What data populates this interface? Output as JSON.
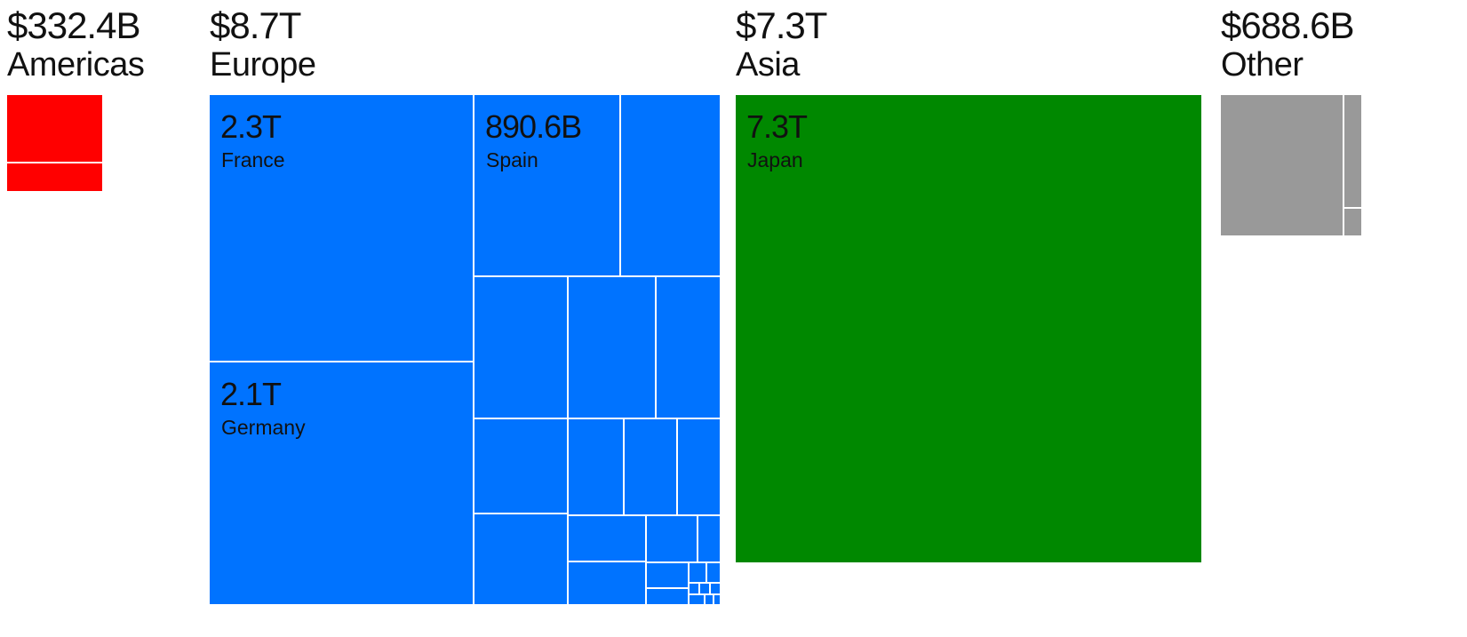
{
  "chart_data": {
    "type": "treemap",
    "title": "",
    "groups": [
      {
        "name": "Americas",
        "total_label": "$332.4B",
        "color": "#ff0000",
        "items": [
          {
            "value": 230
          },
          {
            "value": 102
          }
        ]
      },
      {
        "name": "Europe",
        "total_label": "$8.7T",
        "color": "#0073ff",
        "items": [
          {
            "name": "France",
            "value_label": "2.3T",
            "value": 2300
          },
          {
            "name": "Germany",
            "value_label": "2.1T",
            "value": 2100
          },
          {
            "name": "Spain",
            "value_label": "890.6B",
            "value": 890.6
          },
          {
            "value": 600
          },
          {
            "value": 450
          },
          {
            "value": 420
          },
          {
            "value": 300
          },
          {
            "value": 300
          },
          {
            "value": 180
          },
          {
            "value": 170
          },
          {
            "value": 130
          },
          {
            "value": 270
          },
          {
            "value": 150
          },
          {
            "value": 110
          },
          {
            "value": 75
          },
          {
            "value": 60
          },
          {
            "value": 50
          },
          {
            "value": 30
          },
          {
            "value": 25
          },
          {
            "value": 20
          },
          {
            "value": 15
          },
          {
            "value": 12
          },
          {
            "value": 10
          },
          {
            "value": 8
          },
          {
            "value": 6
          },
          {
            "value": 4
          }
        ]
      },
      {
        "name": "Asia",
        "total_label": "$7.3T",
        "color": "#008800",
        "items": [
          {
            "name": "Japan",
            "value_label": "7.3T",
            "value": 7300
          }
        ]
      },
      {
        "name": "Other",
        "total_label": "$688.6B",
        "color": "#999999",
        "items": [
          {
            "value": 560
          },
          {
            "value": 90
          },
          {
            "value": 38.6
          }
        ]
      }
    ]
  }
}
